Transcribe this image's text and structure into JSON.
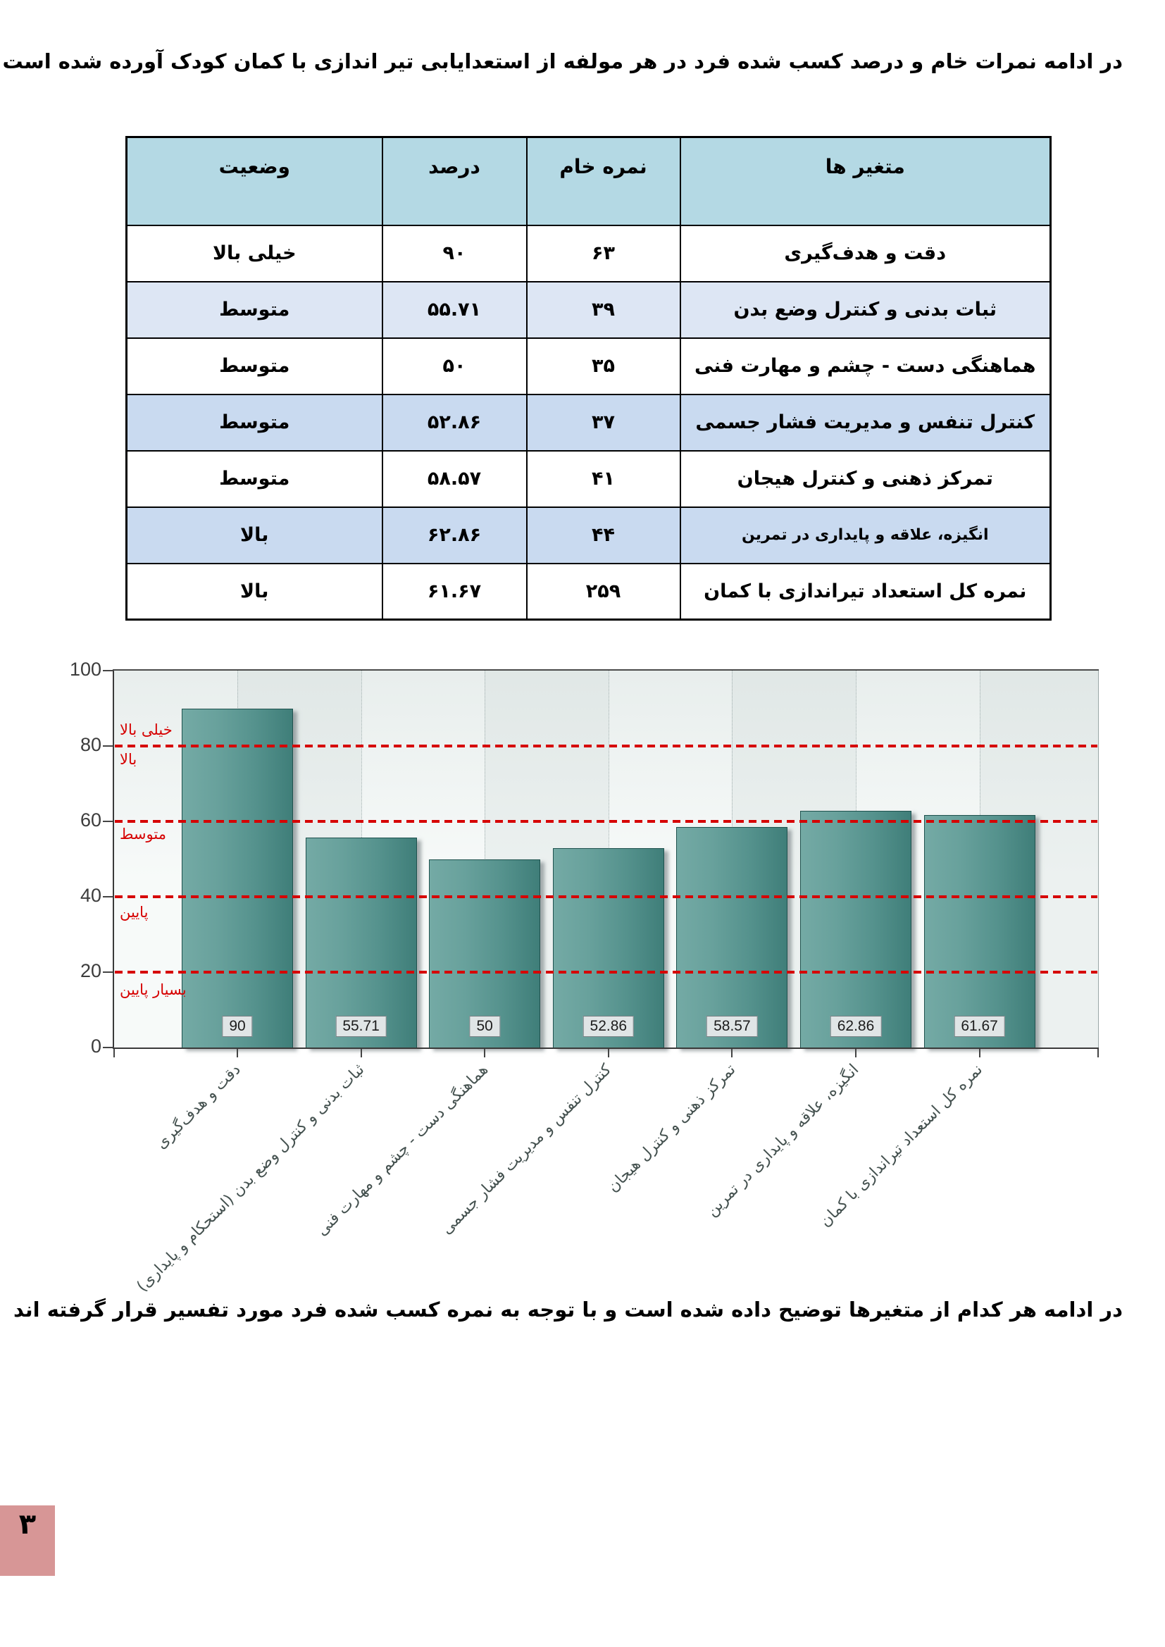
{
  "page": {
    "intro_text": "در ادامه نمرات خام و درصد کسب شده فرد در هر مولفه از استعدایابی تیر اندازی با کمان کودک آورده شده است",
    "outro_text": "در ادامه هر کدام از متغیرها توضیح داده شده است و با توجه به نمره کسب شده فرد مورد تفسیر قرار گرفته اند",
    "page_number": "۳"
  },
  "table": {
    "headers": [
      "متغیر ها",
      "نمره خام",
      "درصد",
      "وضعیت"
    ],
    "rows": [
      {
        "variable": "دقت و هدف‌گیری",
        "raw_score": "۶۳",
        "percent": "۹۰",
        "status": "خیلی بالا"
      },
      {
        "variable": "ثبات بدنی و کنترل وضع بدن",
        "raw_score": "۳۹",
        "percent": "۵۵.۷۱",
        "status": "متوسط"
      },
      {
        "variable": "هماهنگی دست - چشم و مهارت فنی",
        "raw_score": "۳۵",
        "percent": "۵۰",
        "status": "متوسط"
      },
      {
        "variable": "کنترل تنفس و مدیریت فشار جسمی",
        "raw_score": "۳۷",
        "percent": "۵۲.۸۶",
        "status": "متوسط"
      },
      {
        "variable": "تمرکز ذهنی و کنترل هیجان",
        "raw_score": "۴۱",
        "percent": "۵۸.۵۷",
        "status": "متوسط"
      },
      {
        "variable": "انگیزه، علاقه و پایداری در تمرین",
        "raw_score": "۴۴",
        "percent": "۶۲.۸۶",
        "status": "بالا"
      },
      {
        "variable": "نمره کل استعداد تیراندازی با کمان",
        "raw_score": "۲۵۹",
        "percent": "۶۱.۶۷",
        "status": "بالا"
      }
    ]
  },
  "chart_data": {
    "type": "bar",
    "title": "",
    "categories": [
      "دقت و هدف‌گیری",
      "ثبات بدنی و کنترل وضع بدن (استحکام و پایداری)",
      "هماهنگی دست - چشم و مهارت فنی",
      "کنترل تنفس و مدیریت فشار جسمی",
      "تمرکز ذهنی و کنترل هیجان",
      "انگیزه، علاقه و پایداری در تمرین",
      "نمره کل استعداد تیراندازی با کمان"
    ],
    "values": [
      90,
      55.71,
      50,
      52.86,
      58.57,
      62.86,
      61.67
    ],
    "value_labels": [
      "90",
      "55.71",
      "50",
      "52.86",
      "58.57",
      "62.86",
      "61.67"
    ],
    "xlabel": "",
    "ylabel": "",
    "ylim": [
      0,
      100
    ],
    "yticks": [
      0,
      20,
      40,
      60,
      80,
      100
    ],
    "grid": "vertical-dotted",
    "legend": "none",
    "threshold_lines": [
      80,
      60,
      40,
      20
    ],
    "zone_labels": [
      "خیلی بالا",
      "بالا",
      "متوسط",
      "پایین",
      "بسیار پایین"
    ],
    "bar_color": "#55928d",
    "threshold_color": "#d60000"
  }
}
